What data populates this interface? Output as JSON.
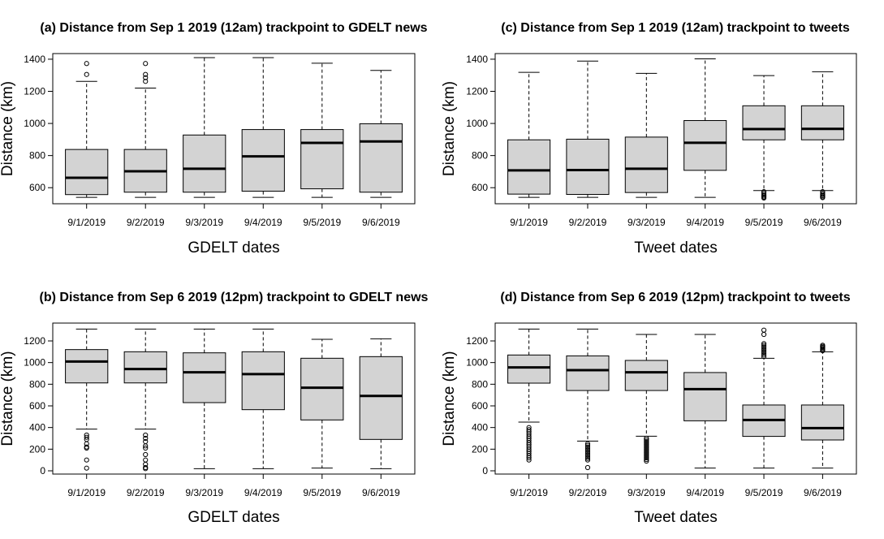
{
  "colors": {
    "box_fill": "#d3d3d3",
    "stroke": "#000000",
    "background": "#ffffff"
  },
  "chart_data": [
    {
      "id": "a",
      "type": "boxplot",
      "title": "(a) Distance from Sep 1 2019 (12am) trackpoint to GDELT news",
      "xlabel": "GDELT dates",
      "ylabel": "Distance (km)",
      "categories": [
        "9/1/2019",
        "9/2/2019",
        "9/3/2019",
        "9/4/2019",
        "9/5/2019",
        "9/6/2019"
      ],
      "ylim": [
        500,
        1435
      ],
      "yticks": [
        600,
        800,
        1000,
        1200,
        1400
      ],
      "boxes": [
        {
          "whisker_low": 540,
          "q1": 557,
          "median": 662,
          "q3": 838,
          "whisker_high": 1262,
          "outliers": [
            1305,
            1373
          ]
        },
        {
          "whisker_low": 540,
          "q1": 572,
          "median": 702,
          "q3": 838,
          "whisker_high": 1220,
          "outliers": [
            1262,
            1285,
            1305,
            1373
          ]
        },
        {
          "whisker_low": 540,
          "q1": 572,
          "median": 718,
          "q3": 928,
          "whisker_high": 1410,
          "outliers": []
        },
        {
          "whisker_low": 540,
          "q1": 578,
          "median": 795,
          "q3": 962,
          "whisker_high": 1410,
          "outliers": []
        },
        {
          "whisker_low": 540,
          "q1": 593,
          "median": 879,
          "q3": 962,
          "whisker_high": 1375,
          "outliers": []
        },
        {
          "whisker_low": 540,
          "q1": 572,
          "median": 888,
          "q3": 998,
          "whisker_high": 1330,
          "outliers": []
        }
      ]
    },
    {
      "id": "c",
      "type": "boxplot",
      "title": "(c) Distance from Sep 1 2019 (12am) trackpoint to tweets",
      "xlabel": "Tweet dates",
      "ylabel": "Distance (km)",
      "categories": [
        "9/1/2019",
        "9/2/2019",
        "9/3/2019",
        "9/4/2019",
        "9/5/2019",
        "9/6/2019"
      ],
      "ylim": [
        500,
        1435
      ],
      "yticks": [
        600,
        800,
        1000,
        1200,
        1400
      ],
      "boxes": [
        {
          "whisker_low": 540,
          "q1": 560,
          "median": 708,
          "q3": 898,
          "whisker_high": 1318,
          "outliers": []
        },
        {
          "whisker_low": 540,
          "q1": 558,
          "median": 710,
          "q3": 902,
          "whisker_high": 1388,
          "outliers": []
        },
        {
          "whisker_low": 540,
          "q1": 570,
          "median": 718,
          "q3": 915,
          "whisker_high": 1312,
          "outliers": []
        },
        {
          "whisker_low": 540,
          "q1": 708,
          "median": 880,
          "q3": 1018,
          "whisker_high": 1402,
          "outliers": []
        },
        {
          "whisker_low": 582,
          "q1": 898,
          "median": 965,
          "q3": 1110,
          "whisker_high": 1298,
          "outliers": [
            575,
            565,
            555,
            548,
            541,
            536
          ]
        },
        {
          "whisker_low": 582,
          "q1": 898,
          "median": 966,
          "q3": 1110,
          "whisker_high": 1322,
          "outliers": [
            575,
            565,
            557,
            550,
            543,
            538
          ]
        }
      ]
    },
    {
      "id": "b",
      "type": "boxplot",
      "title": "(b) Distance from Sep 6 2019 (12pm) trackpoint to GDELT news",
      "xlabel": "GDELT dates",
      "ylabel": "Distance (km)",
      "categories": [
        "9/1/2019",
        "9/2/2019",
        "9/3/2019",
        "9/4/2019",
        "9/5/2019",
        "9/6/2019"
      ],
      "ylim": [
        -30,
        1365
      ],
      "yticks": [
        0,
        200,
        400,
        600,
        800,
        1000,
        1200
      ],
      "boxes": [
        {
          "whisker_low": 385,
          "q1": 812,
          "median": 1010,
          "q3": 1120,
          "whisker_high": 1310,
          "outliers": [
            330,
            310,
            290,
            250,
            220,
            210,
            100,
            25
          ]
        },
        {
          "whisker_low": 385,
          "q1": 812,
          "median": 940,
          "q3": 1100,
          "whisker_high": 1310,
          "outliers": [
            330,
            300,
            270,
            230,
            210,
            150,
            100,
            60,
            30,
            20
          ]
        },
        {
          "whisker_low": 20,
          "q1": 630,
          "median": 910,
          "q3": 1090,
          "whisker_high": 1310,
          "outliers": []
        },
        {
          "whisker_low": 20,
          "q1": 565,
          "median": 893,
          "q3": 1100,
          "whisker_high": 1310,
          "outliers": []
        },
        {
          "whisker_low": 25,
          "q1": 470,
          "median": 768,
          "q3": 1040,
          "whisker_high": 1215,
          "outliers": []
        },
        {
          "whisker_low": 20,
          "q1": 290,
          "median": 692,
          "q3": 1055,
          "whisker_high": 1220,
          "outliers": []
        }
      ]
    },
    {
      "id": "d",
      "type": "boxplot",
      "title": "(d) Distance from Sep 6 2019 (12pm) trackpoint to tweets",
      "xlabel": "Tweet dates",
      "ylabel": "Distance (km)",
      "categories": [
        "9/1/2019",
        "9/2/2019",
        "9/3/2019",
        "9/4/2019",
        "9/5/2019",
        "9/6/2019"
      ],
      "ylim": [
        -30,
        1365
      ],
      "yticks": [
        0,
        200,
        400,
        600,
        800,
        1000,
        1200
      ],
      "boxes": [
        {
          "whisker_low": 450,
          "q1": 810,
          "median": 955,
          "q3": 1070,
          "whisker_high": 1310,
          "outliers": [
            400,
            380,
            360,
            340,
            320,
            300,
            280,
            260,
            240,
            220,
            200,
            180,
            160,
            140,
            120,
            100
          ]
        },
        {
          "whisker_low": 275,
          "q1": 742,
          "median": 930,
          "q3": 1062,
          "whisker_high": 1310,
          "outliers": [
            250,
            235,
            220,
            205,
            190,
            175,
            160,
            145,
            130,
            115,
            100,
            30
          ]
        },
        {
          "whisker_low": 320,
          "q1": 742,
          "median": 910,
          "q3": 1020,
          "whisker_high": 1260,
          "outliers": [
            300,
            285,
            270,
            255,
            240,
            225,
            210,
            195,
            180,
            165,
            150,
            135,
            120,
            105,
            90
          ]
        },
        {
          "whisker_low": 25,
          "q1": 462,
          "median": 755,
          "q3": 908,
          "whisker_high": 1260,
          "outliers": []
        },
        {
          "whisker_low": 25,
          "q1": 318,
          "median": 470,
          "q3": 608,
          "whisker_high": 1040,
          "outliers": [
            1055,
            1070,
            1085,
            1100,
            1115,
            1130,
            1145,
            1160,
            1175,
            1260,
            1300
          ]
        },
        {
          "whisker_low": 25,
          "q1": 285,
          "median": 395,
          "q3": 608,
          "whisker_high": 1100,
          "outliers": [
            1110,
            1120,
            1130,
            1140,
            1150,
            1160
          ]
        }
      ]
    }
  ]
}
